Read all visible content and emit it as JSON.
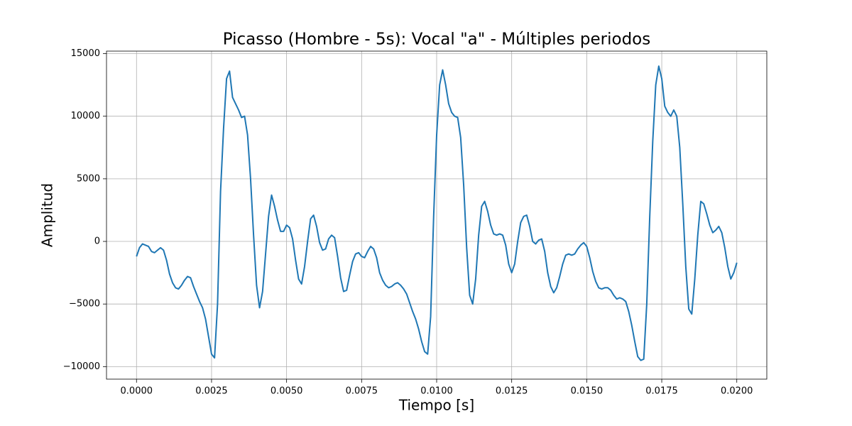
{
  "chart_data": {
    "type": "line",
    "title": "Picasso (Hombre - 5s): Vocal \"a\" - Múltiples periodos",
    "x_label": "Tiempo [s]",
    "y_label": "Amplitud",
    "color": "#1f77b4",
    "grid": true,
    "xlim": [
      -0.001,
      0.021
    ],
    "ylim": [
      -11000,
      15200
    ],
    "xticks": [
      {
        "value": 0,
        "label": "0.0000"
      },
      0.0025,
      {
        "value": 0.005,
        "label": "0.0050"
      },
      0.0075,
      {
        "value": 0.01,
        "label": "0.0100"
      },
      0.0125,
      {
        "value": 0.015,
        "label": "0.0150"
      },
      0.0175,
      {
        "value": 0.02,
        "label": "0.0200"
      }
    ],
    "yticks": [
      {
        "value": -10000,
        "label": "−10000"
      },
      {
        "value": -5000,
        "label": "−5000"
      },
      0,
      5000,
      10000,
      15000
    ],
    "x": [
      0,
      0.0001,
      0.0002,
      0.0003,
      0.0004,
      0.0005,
      0.0006,
      0.0007,
      0.0008,
      0.0009,
      0.001,
      0.0011,
      0.0012,
      0.0013,
      0.0014,
      0.0015,
      0.0016,
      0.0017,
      0.0018,
      0.0019,
      0.002,
      0.0021,
      0.0022,
      0.0023,
      0.0024,
      0.0025,
      0.0026,
      0.0027,
      0.0028,
      0.0029,
      0.003,
      0.0031,
      0.0032,
      0.0033,
      0.0034,
      0.0035,
      0.0036,
      0.0037,
      0.0038,
      0.0039,
      0.004,
      0.0041,
      0.0042,
      0.0043,
      0.0044,
      0.0045,
      0.0046,
      0.0047,
      0.0048,
      0.0049,
      0.005,
      0.0051,
      0.0052,
      0.0053,
      0.0054,
      0.0055,
      0.0056,
      0.0057,
      0.0058,
      0.0059,
      0.006,
      0.0061,
      0.0062,
      0.0063,
      0.0064,
      0.0065,
      0.0066,
      0.0067,
      0.0068,
      0.0069,
      0.007,
      0.0071,
      0.0072,
      0.0073,
      0.0074,
      0.0075,
      0.0076,
      0.0077,
      0.0078,
      0.0079,
      0.008,
      0.0081,
      0.0082,
      0.0083,
      0.0084,
      0.0085,
      0.0086,
      0.0087,
      0.0088,
      0.0089,
      0.009,
      0.0091,
      0.0092,
      0.0093,
      0.0094,
      0.0095,
      0.0096,
      0.0097,
      0.0098,
      0.0099,
      0.01,
      0.0101,
      0.0102,
      0.0103,
      0.0104,
      0.0105,
      0.0106,
      0.0107,
      0.0108,
      0.0109,
      0.011,
      0.0111,
      0.0112,
      0.0113,
      0.0114,
      0.0115,
      0.0116,
      0.0117,
      0.0118,
      0.0119,
      0.012,
      0.0121,
      0.0122,
      0.0123,
      0.0124,
      0.0125,
      0.0126,
      0.0127,
      0.0128,
      0.0129,
      0.013,
      0.0131,
      0.0132,
      0.0133,
      0.0134,
      0.0135,
      0.0136,
      0.0137,
      0.0138,
      0.0139,
      0.014,
      0.0141,
      0.0142,
      0.0143,
      0.0144,
      0.0145,
      0.0146,
      0.0147,
      0.0148,
      0.0149,
      0.015,
      0.0151,
      0.0152,
      0.0153,
      0.0154,
      0.0155,
      0.0156,
      0.0157,
      0.0158,
      0.0159,
      0.016,
      0.0161,
      0.0162,
      0.0163,
      0.0164,
      0.0165,
      0.0166,
      0.0167,
      0.0168,
      0.0169,
      0.017,
      0.0171,
      0.0172,
      0.0173,
      0.0174,
      0.0175,
      0.0176,
      0.0177,
      0.0178,
      0.0179,
      0.018,
      0.0181,
      0.0182,
      0.0183,
      0.0184,
      0.0185,
      0.0186,
      0.0187,
      0.0188,
      0.0189,
      0.019,
      0.0191,
      0.0192,
      0.0193,
      0.0194,
      0.0195,
      0.0196,
      0.0197,
      0.0198,
      0.0199,
      0.02
    ],
    "values": [
      -1200,
      -500,
      -200,
      -300,
      -400,
      -800,
      -900,
      -700,
      -500,
      -700,
      -1500,
      -2600,
      -3300,
      -3700,
      -3800,
      -3500,
      -3100,
      -2800,
      -2900,
      -3600,
      -4200,
      -4800,
      -5300,
      -6200,
      -7600,
      -9000,
      -9300,
      -5000,
      4000,
      9000,
      13000,
      13600,
      11500,
      11000,
      10500,
      9900,
      10000,
      8500,
      5000,
      500,
      -3500,
      -5300,
      -4000,
      -1000,
      2000,
      3700,
      2800,
      1700,
      800,
      800,
      1300,
      1100,
      200,
      -1500,
      -3000,
      -3400,
      -2000,
      0,
      1800,
      2100,
      1200,
      -100,
      -700,
      -600,
      200,
      500,
      300,
      -1200,
      -2900,
      -4000,
      -3900,
      -2700,
      -1600,
      -1000,
      -900,
      -1200,
      -1300,
      -800,
      -400,
      -600,
      -1300,
      -2500,
      -3100,
      -3500,
      -3700,
      -3600,
      -3400,
      -3300,
      -3500,
      -3800,
      -4200,
      -4900,
      -5600,
      -6200,
      -7000,
      -8000,
      -8800,
      -9000,
      -6000,
      2000,
      8500,
      12500,
      13700,
      12500,
      11000,
      10300,
      10000,
      9900,
      8300,
      4500,
      -500,
      -4300,
      -5000,
      -3000,
      500,
      2800,
      3200,
      2400,
      1300,
      600,
      500,
      600,
      500,
      -300,
      -1800,
      -2500,
      -1800,
      0,
      1500,
      2000,
      2100,
      1200,
      0,
      -200,
      100,
      200,
      -800,
      -2500,
      -3600,
      -4100,
      -3700,
      -2800,
      -1800,
      -1100,
      -1000,
      -1100,
      -1000,
      -600,
      -300,
      -100,
      -400,
      -1300,
      -2400,
      -3200,
      -3700,
      -3800,
      -3700,
      -3700,
      -3900,
      -4300,
      -4600,
      -4500,
      -4600,
      -4800,
      -5600,
      -6700,
      -8000,
      -9200,
      -9500,
      -9400,
      -5000,
      2000,
      8000,
      12500,
      14000,
      13000,
      10800,
      10300,
      10000,
      10500,
      10000,
      7500,
      3000,
      -2000,
      -5400,
      -5800,
      -3000,
      500,
      3200,
      3000,
      2200,
      1300,
      700,
      900,
      1200,
      700,
      -500,
      -2000,
      -3000,
      -2500,
      -1700
    ]
  }
}
